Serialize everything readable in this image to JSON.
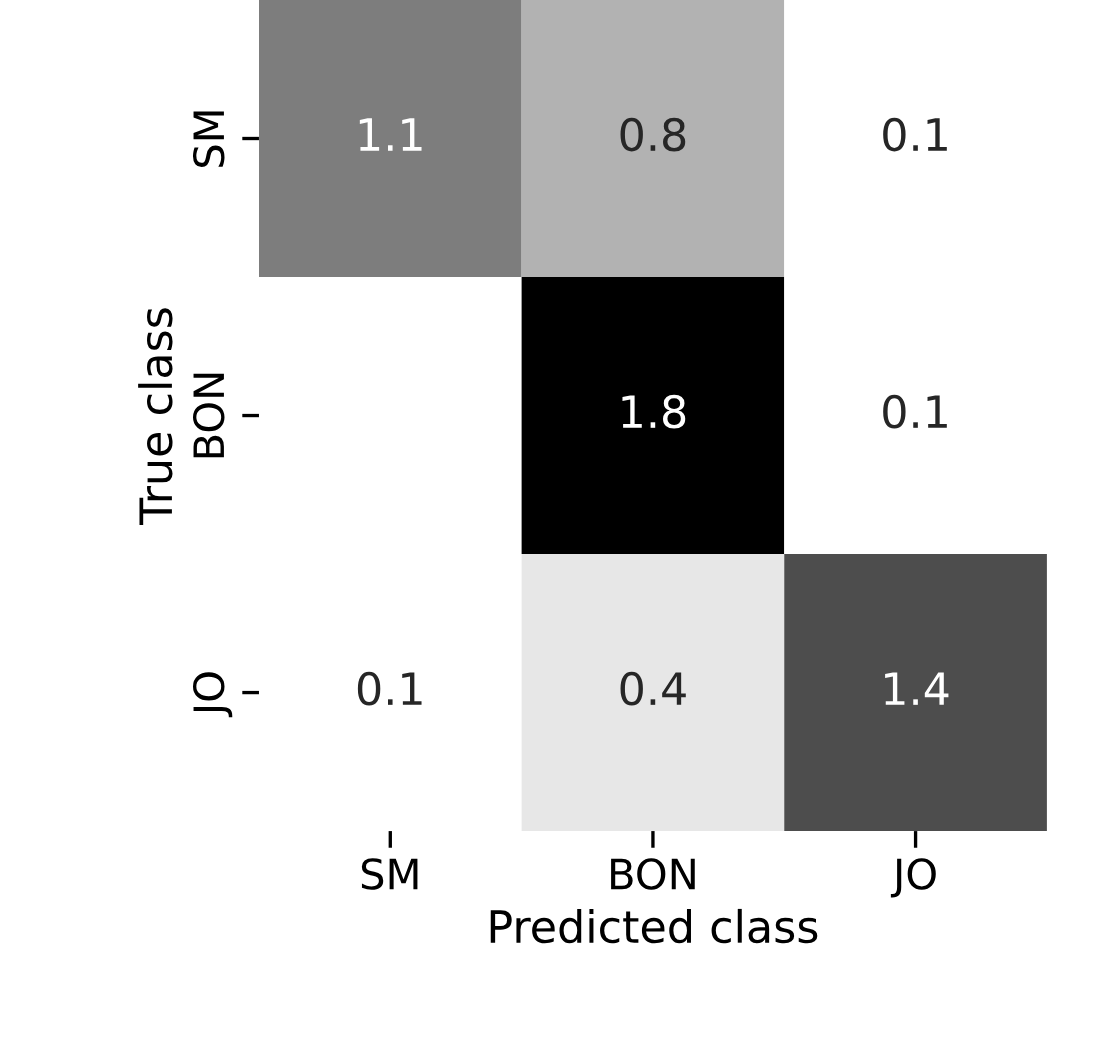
{
  "chart_data": {
    "type": "heatmap",
    "xlabel": "Predicted class",
    "ylabel": "True class",
    "categories": [
      "SM",
      "BON",
      "JO"
    ],
    "y_categories": [
      "SM",
      "BON",
      "JO"
    ],
    "cells": [
      [
        1.1,
        0.8,
        0.1
      ],
      [
        null,
        1.8,
        0.1
      ],
      [
        0.1,
        0.4,
        1.4
      ]
    ],
    "data_labels": true
  }
}
